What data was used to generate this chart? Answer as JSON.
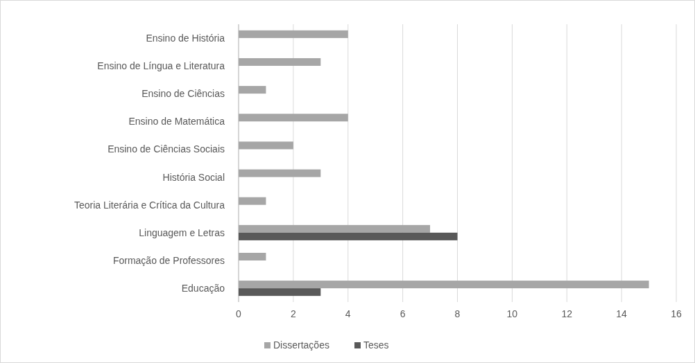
{
  "chart_data": {
    "type": "bar",
    "orientation": "horizontal",
    "categories": [
      "Ensino de História",
      "Ensino de Língua e Literatura",
      "Ensino de Ciências",
      "Ensino de Matemática",
      "Ensino de Ciências Sociais",
      "História Social",
      "Teoria Literária e Crítica da Cultura",
      "Linguagem e Letras",
      "Formação de Professores",
      "Educação"
    ],
    "series": [
      {
        "name": "Dissertações",
        "color": "#a6a6a6",
        "values": [
          4,
          3,
          1,
          4,
          2,
          3,
          1,
          7,
          1,
          15
        ]
      },
      {
        "name": "Teses",
        "color": "#595959",
        "values": [
          null,
          null,
          null,
          null,
          null,
          null,
          null,
          8,
          null,
          3
        ]
      }
    ],
    "xlim": [
      0,
      16
    ],
    "xticks": [
      0,
      2,
      4,
      6,
      8,
      10,
      12,
      14,
      16
    ],
    "grid": "x",
    "legend": "bottom"
  }
}
